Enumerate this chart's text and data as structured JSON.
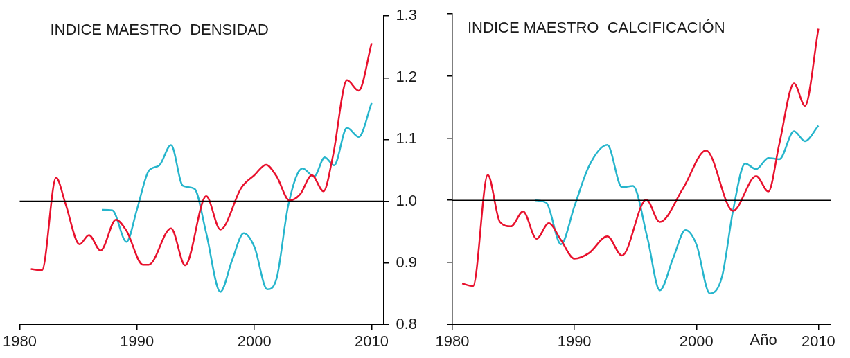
{
  "chart_data": [
    {
      "type": "line",
      "title": "INDICE MAESTRO  DENSIDAD",
      "xlim": [
        1980,
        2011
      ],
      "xticks": [
        1980,
        1990,
        2000,
        2010
      ],
      "ylim": [
        0.8,
        1.3
      ],
      "yticks": [
        0.8,
        0.9,
        {
          "value": 1.0,
          "label": "1.0"
        },
        1.1,
        1.2,
        1.3
      ],
      "grid": false,
      "legend": false,
      "marker": "none",
      "line_style": "solid",
      "ref_lines": [
        {
          "axis": "y",
          "value": 1.0,
          "color": "#000000"
        }
      ],
      "series": [
        {
          "color": "#e8112d",
          "x": [
            1980.95,
            1981.9,
            1983.1,
            1983.9,
            1985.1,
            1985.9,
            1986.9,
            1988.2,
            1989.1,
            1990.5,
            1991.0,
            1992.9,
            1994.1,
            1995.9,
            1997.1,
            1998.9,
            2000.0,
            2001.0,
            2001.9,
            2003.0,
            2003.9,
            2004.9,
            2005.9,
            2006.7,
            2007.9,
            2008.9,
            2010.0
          ],
          "values": [
            0.89,
            0.888,
            1.038,
            0.996,
            0.93,
            0.945,
            0.92,
            0.97,
            0.952,
            0.897,
            0.897,
            0.956,
            0.896,
            1.008,
            0.954,
            1.022,
            1.042,
            1.059,
            1.04,
            1.001,
            1.011,
            1.042,
            1.016,
            1.073,
            1.196,
            1.179,
            1.256
          ]
        },
        {
          "color": "#26b5cc",
          "x": [
            1987.0,
            1987.9,
            1989.1,
            1990.0,
            1991.0,
            1991.9,
            1992.9,
            1993.9,
            1994.9,
            1995.9,
            1997.1,
            1998.1,
            1999.1,
            2000.0,
            2001.1,
            2001.9,
            2002.9,
            2004.1,
            2005.1,
            2006.0,
            2006.8,
            2007.9,
            2008.9,
            2010.0
          ],
          "values": [
            0.986,
            0.985,
            0.934,
            0.987,
            1.049,
            1.058,
            1.091,
            1.025,
            1.02,
            0.948,
            0.853,
            0.904,
            0.948,
            0.926,
            0.857,
            0.875,
            0.994,
            1.053,
            1.04,
            1.071,
            1.058,
            1.119,
            1.104,
            1.159
          ]
        }
      ]
    },
    {
      "type": "line",
      "title": "INDICE MAESTRO  CALCIFICACIÓN",
      "xlabel": "Año",
      "xlim": [
        1980,
        2011
      ],
      "xticks": [
        1980,
        1990,
        2000,
        2010
      ],
      "ylim": [
        0.8,
        1.3
      ],
      "yticks": [
        0.8,
        0.9,
        1.0,
        1.1,
        1.2,
        1.3
      ],
      "tick_labels": "x",
      "grid": false,
      "legend": false,
      "marker": "none",
      "line_style": "solid",
      "ref_lines": [
        {
          "axis": "y",
          "value": 1.0,
          "color": "#000000"
        }
      ],
      "series": [
        {
          "color": "#e8112d",
          "x": [
            1980.8,
            1981.7,
            1982.9,
            1983.9,
            1984.8,
            1985.8,
            1986.9,
            1987.9,
            1988.9,
            1990.0,
            1991.2,
            1992.7,
            1993.9,
            1995.9,
            1997.0,
            1998.9,
            2000.8,
            2003.0,
            2004.9,
            2005.9,
            2006.8,
            2008.0,
            2008.9,
            2010.0
          ],
          "values": [
            0.866,
            0.862,
            1.041,
            0.965,
            0.958,
            0.982,
            0.938,
            0.963,
            0.936,
            0.906,
            0.915,
            0.942,
            0.911,
            1.001,
            0.965,
            1.019,
            1.08,
            0.983,
            1.039,
            1.014,
            1.091,
            1.188,
            1.152,
            1.276
          ]
        },
        {
          "color": "#26b5cc",
          "x": [
            1986.8,
            1987.7,
            1988.9,
            1990.0,
            1991.2,
            1992.7,
            1993.9,
            1994.8,
            1996.0,
            1997.0,
            1998.1,
            1999.1,
            2000.0,
            2001.1,
            2002.1,
            2003.0,
            2004.0,
            2004.9,
            2005.9,
            2006.8,
            2008.0,
            2008.9,
            2010.0
          ],
          "values": [
            1.0,
            0.996,
            0.929,
            0.99,
            1.055,
            1.089,
            1.021,
            1.023,
            0.938,
            0.855,
            0.907,
            0.952,
            0.929,
            0.85,
            0.877,
            0.983,
            1.059,
            1.05,
            1.068,
            1.066,
            1.111,
            1.095,
            1.12
          ]
        }
      ]
    }
  ]
}
